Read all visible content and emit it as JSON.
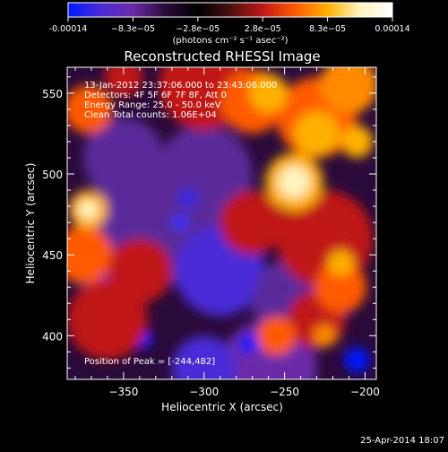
{
  "colors": {
    "background": "#000000",
    "text": "#ffffff",
    "colormap": [
      "#0018ff",
      "#4a2bd6",
      "#6a2aa8",
      "#2a0a3a",
      "#000000",
      "#4a1010",
      "#c01818",
      "#ff5a00",
      "#ffb000",
      "#fff4c0",
      "#ffffff"
    ]
  },
  "colorbar": {
    "ticks": [
      "-0.00014",
      "−8.3e−05",
      "−2.8e−05",
      "2.8e−05",
      "8.3e−05",
      "0.00014"
    ],
    "unit_label": "(photons cm⁻² s⁻¹ asec⁻²)"
  },
  "chart_data": {
    "type": "heatmap",
    "title": "Reconstructed RHESSI Image",
    "xlabel": "Heliocentric X (arcsec)",
    "ylabel": "Heliocentric Y (arcsec)",
    "xlim": [
      -385,
      -193
    ],
    "ylim": [
      373,
      566
    ],
    "xticks": [
      -350,
      -300,
      -250,
      -200
    ],
    "yticks": [
      400,
      450,
      500,
      550
    ],
    "value_range": [
      -0.00014,
      0.00014
    ],
    "annotations": [
      "13-Jan-2012 23:37:06.000 to 23:43:06.000",
      "Detectors: 4F 5F 6F 7F 8F, Att 0",
      "Energy Range: 25.0 - 50.0 keV",
      "Clean     Total counts: 1.06E+04"
    ],
    "peak_label": "Position of Peak = [-244,482]",
    "peak": [
      -244,
      482
    ]
  },
  "footer": {
    "timestamp": "25-Apr-2014 18:07"
  }
}
